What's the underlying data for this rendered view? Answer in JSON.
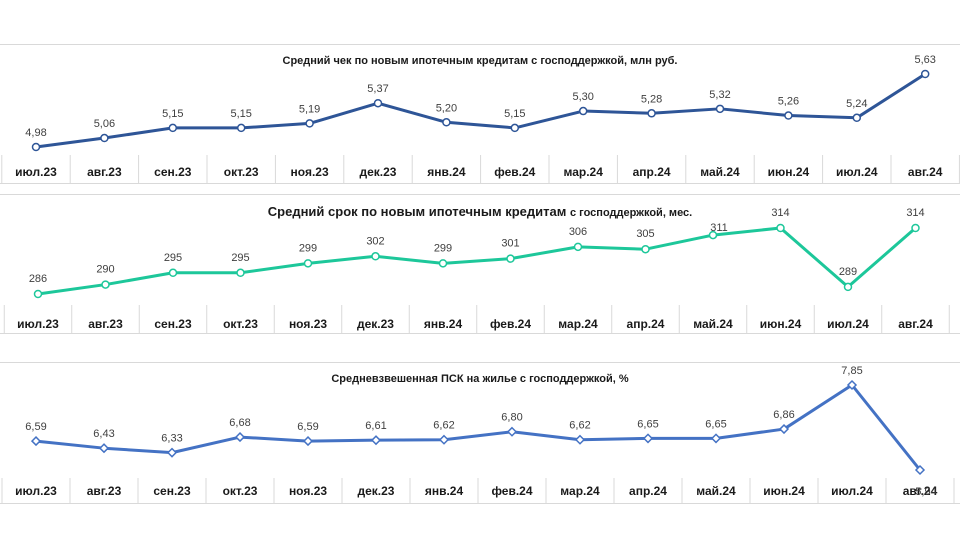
{
  "chart_data": [
    {
      "type": "line",
      "title": "Средний чек по новым ипотечным кредитам с господдержкой, млн руб.",
      "categories": [
        "июл.23",
        "авг.23",
        "сен.23",
        "окт.23",
        "ноя.23",
        "дек.23",
        "янв.24",
        "фев.24",
        "мар.24",
        "апр.24",
        "май.24",
        "июн.24",
        "июл.24",
        "авг.24"
      ],
      "values": [
        4.98,
        5.06,
        5.15,
        5.15,
        5.19,
        5.37,
        5.2,
        5.15,
        5.3,
        5.28,
        5.32,
        5.26,
        5.24,
        5.63
      ],
      "data_labels": [
        "4,98",
        "5,06",
        "5,15",
        "5,15",
        "5,19",
        "5,37",
        "5,20",
        "5,15",
        "5,30",
        "5,28",
        "5,32",
        "5,26",
        "5,24",
        "5,63"
      ],
      "marker": "circle",
      "color": "#2e5597",
      "grid": false,
      "legend": "none"
    },
    {
      "type": "line",
      "title_main": "Средний срок по новым ипотечным кредитам",
      "title_suffix": "с господдержкой, мес.",
      "categories": [
        "июл.23",
        "авг.23",
        "сен.23",
        "окт.23",
        "ноя.23",
        "дек.23",
        "янв.24",
        "фев.24",
        "мар.24",
        "апр.24",
        "май.24",
        "июн.24",
        "июл.24",
        "авг.24"
      ],
      "values": [
        286,
        290,
        295,
        295,
        299,
        302,
        299,
        301,
        306,
        305,
        311,
        314,
        289,
        314
      ],
      "data_labels": [
        "286",
        "290",
        "295",
        "295",
        "299",
        "302",
        "299",
        "301",
        "306",
        "305",
        "311",
        "314",
        "289",
        "314"
      ],
      "marker": "circle",
      "color": "#1dc79a",
      "grid": false,
      "legend": "none"
    },
    {
      "type": "line",
      "title": "Средневзвешенная ПСК на жилье с господдержкой, %",
      "categories": [
        "июл.23",
        "авг.23",
        "сен.23",
        "окт.23",
        "ноя.23",
        "дек.23",
        "янв.24",
        "фев.24",
        "мар.24",
        "апр.24",
        "май.24",
        "июн.24",
        "июл.24",
        "авг.24"
      ],
      "values": [
        6.59,
        6.43,
        6.33,
        6.68,
        6.59,
        6.61,
        6.62,
        6.8,
        6.62,
        6.65,
        6.65,
        6.86,
        7.85,
        5.94
      ],
      "data_labels": [
        "6,59",
        "6,43",
        "6,33",
        "6,68",
        "6,59",
        "6,61",
        "6,62",
        "6,80",
        "6,62",
        "6,65",
        "6,65",
        "6,86",
        "7,85",
        "5,94"
      ],
      "marker": "diamond",
      "color": "#4472c4",
      "grid": false,
      "legend": "none"
    }
  ]
}
